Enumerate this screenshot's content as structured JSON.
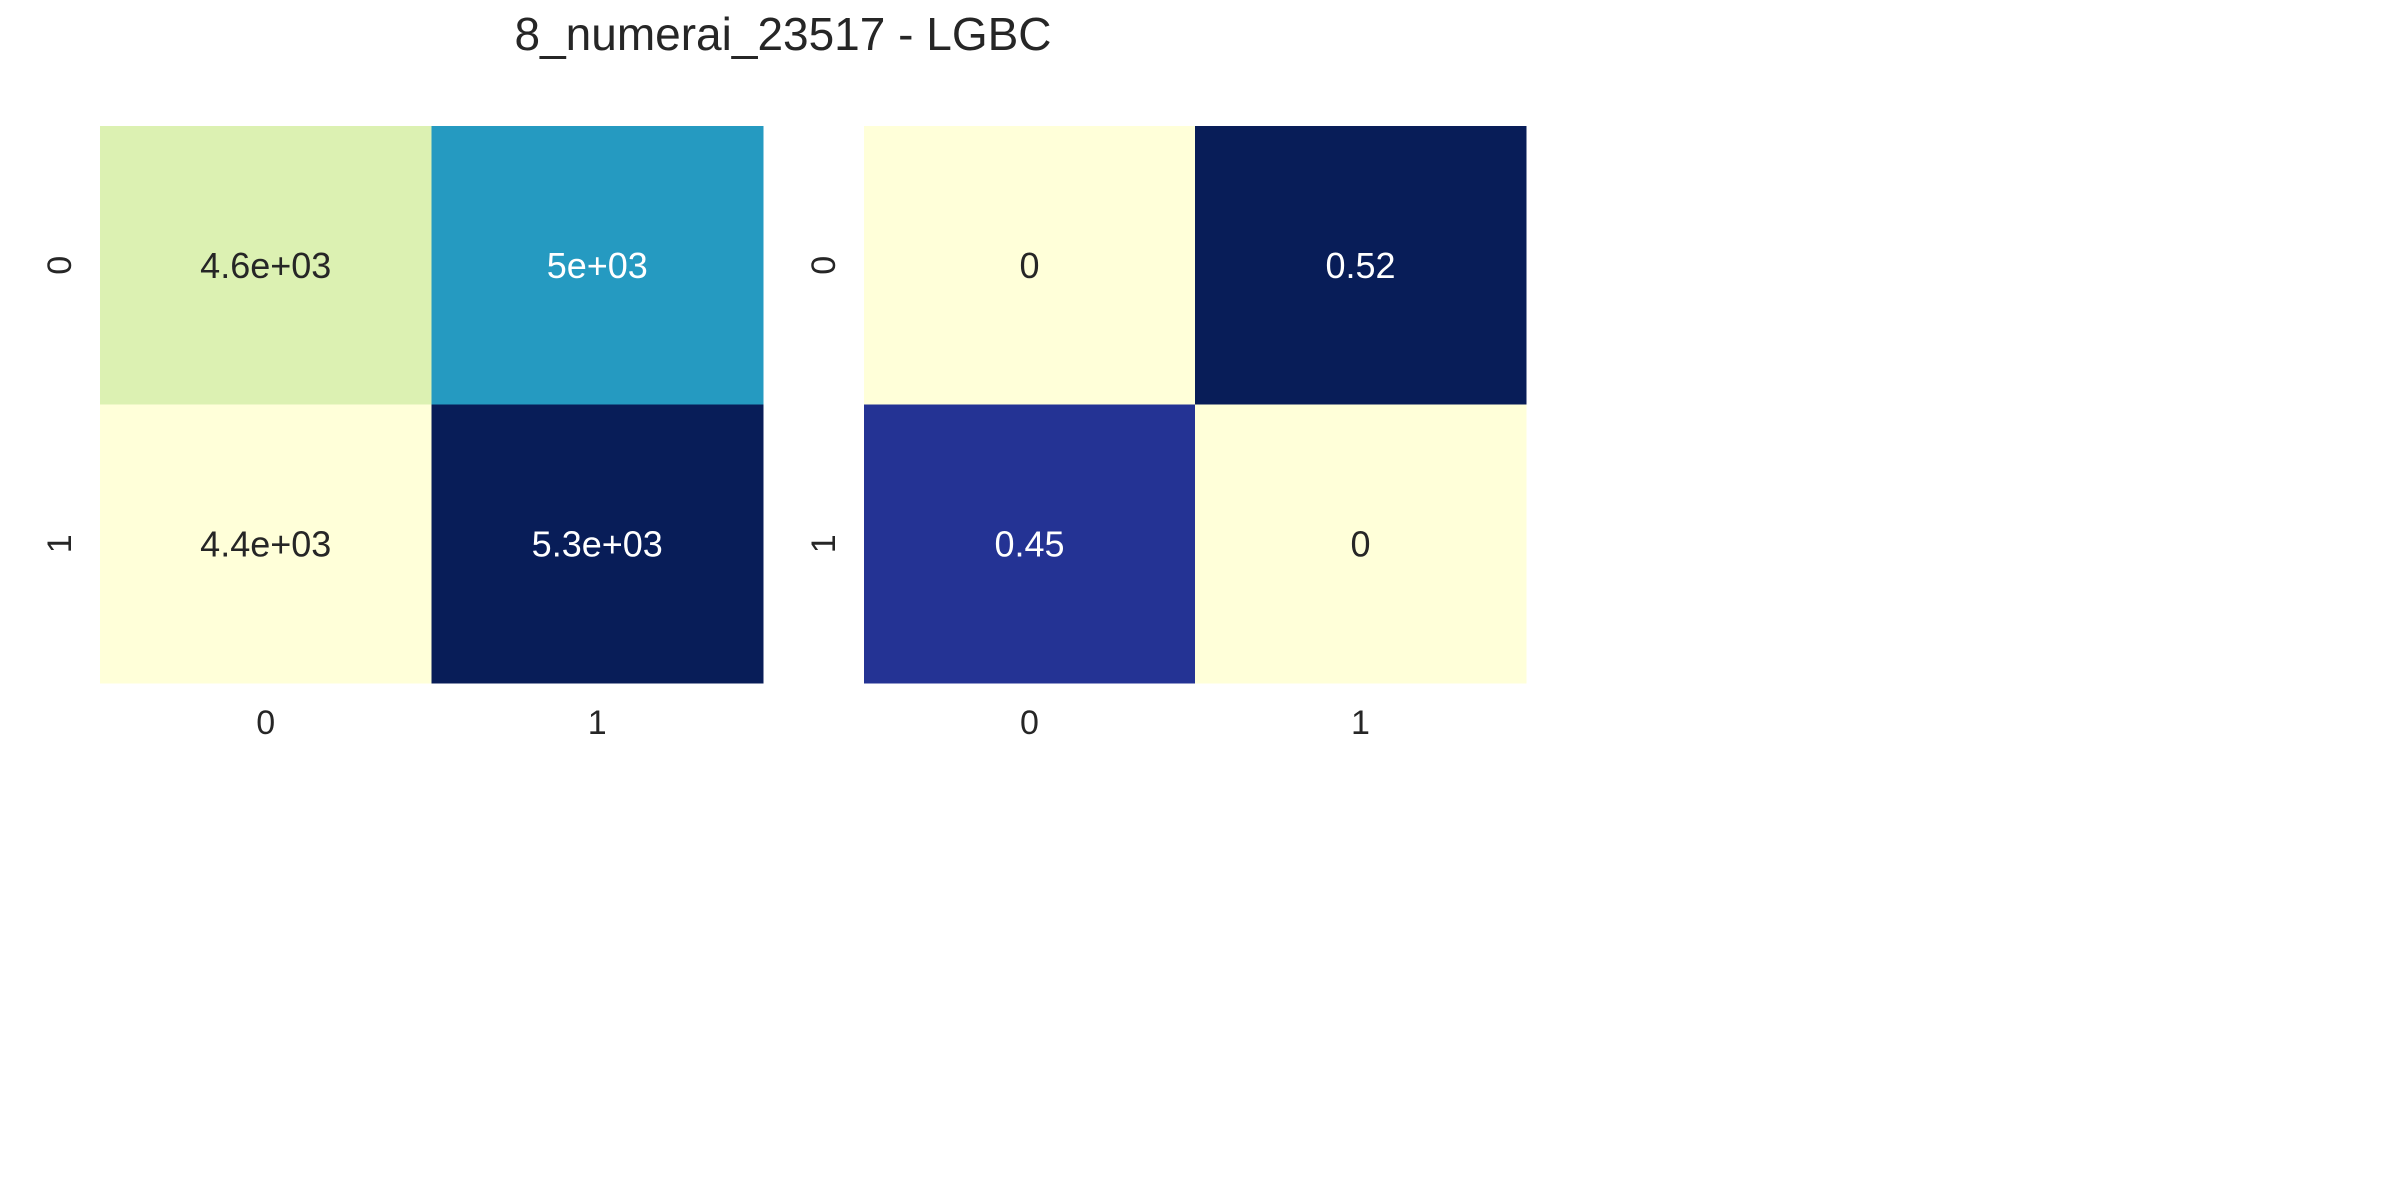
{
  "figure": {
    "title": "8_numerai_23517 - LGBC"
  },
  "chart_data": [
    {
      "type": "heatmap",
      "x_ticks": [
        "0",
        "1"
      ],
      "y_ticks": [
        "0",
        "1"
      ],
      "values": [
        [
          4600,
          5000
        ],
        [
          4400,
          5300
        ]
      ],
      "labels": [
        [
          "4.6e+03",
          "5e+03"
        ],
        [
          "4.4e+03",
          "5.3e+03"
        ]
      ],
      "colormap": "YlGnBu",
      "colorbar": false,
      "cell_colors": [
        [
          "#dcf1b2",
          "#259ac1"
        ],
        [
          "#ffffd9",
          "#081d58"
        ]
      ],
      "label_colors": [
        [
          "#262626",
          "#ffffff"
        ],
        [
          "#262626",
          "#ffffff"
        ]
      ]
    },
    {
      "type": "heatmap",
      "x_ticks": [
        "0",
        "1"
      ],
      "y_ticks": [
        "0",
        "1"
      ],
      "values": [
        [
          0,
          0.52
        ],
        [
          0.45,
          0
        ]
      ],
      "labels": [
        [
          "0",
          "0.52"
        ],
        [
          "0.45",
          "0"
        ]
      ],
      "colormap": "YlGnBu",
      "colorbar": false,
      "cell_colors": [
        [
          "#ffffd9",
          "#081d58"
        ],
        [
          "#243394",
          "#ffffd9"
        ]
      ],
      "label_colors": [
        [
          "#262626",
          "#ffffff"
        ],
        [
          "#ffffff",
          "#262626"
        ]
      ]
    }
  ]
}
